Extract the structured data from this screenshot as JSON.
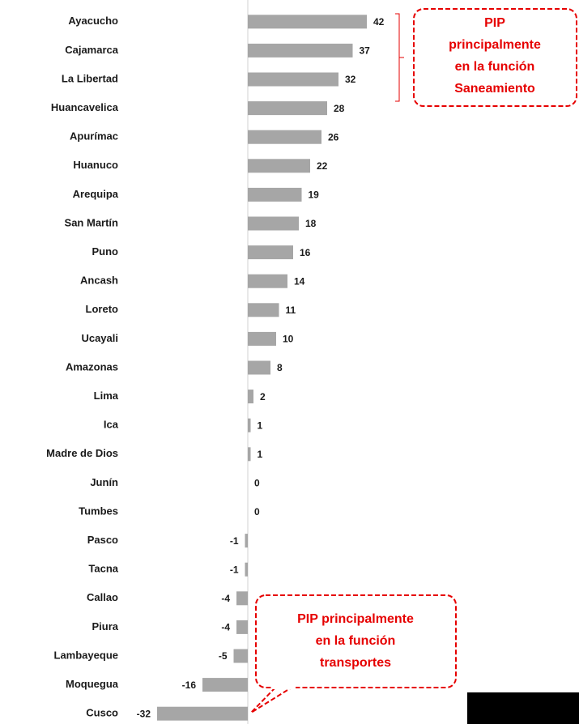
{
  "chart_data": {
    "type": "barh",
    "categories": [
      "Ayacucho",
      "Cajamarca",
      "La Libertad",
      "Huancavelica",
      "Apurímac",
      "Huanuco",
      "Arequipa",
      "San Martín",
      "Puno",
      "Ancash",
      "Loreto",
      "Ucayali",
      "Amazonas",
      "Lima",
      "Ica",
      "Madre de Dios",
      "Junín",
      "Tumbes",
      "Pasco",
      "Tacna",
      "Callao",
      "Piura",
      "Lambayeque",
      "Moquegua",
      "Cusco"
    ],
    "values": [
      42,
      37,
      32,
      28,
      26,
      22,
      19,
      18,
      16,
      14,
      11,
      10,
      8,
      2,
      1,
      1,
      0,
      0,
      -1,
      -1,
      -4,
      -4,
      -5,
      -16,
      -32
    ],
    "color": "#a6a6a6",
    "xlim": [
      -44,
      116
    ],
    "annotations": [
      {
        "lines": [
          "PIP",
          "principalmente",
          "en la función",
          "Saneamiento"
        ]
      },
      {
        "lines": [
          "PIP principalmente",
          "en la función",
          "transportes"
        ]
      }
    ]
  }
}
